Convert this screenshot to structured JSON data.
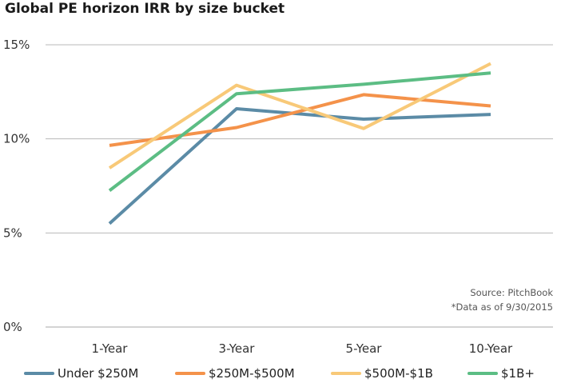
{
  "chart_data": {
    "type": "line",
    "title": "Global PE horizon IRR by size bucket",
    "xlabel": "",
    "ylabel": "",
    "categories": [
      "1-Year",
      "3-Year",
      "5-Year",
      "10-Year"
    ],
    "ylim": [
      0,
      15
    ],
    "yticks": [
      0,
      5,
      10,
      15
    ],
    "ytick_labels": [
      "0%",
      "5%",
      "10%",
      "15%"
    ],
    "grid": true,
    "legend_position": "bottom",
    "series": [
      {
        "name": "Under $250M",
        "color": "#5b8ba6",
        "values": [
          5.5,
          11.6,
          11.05,
          11.3
        ]
      },
      {
        "name": "$250M-$500M",
        "color": "#f4924a",
        "values": [
          9.65,
          10.6,
          12.35,
          11.75
        ]
      },
      {
        "name": "$500M-$1B",
        "color": "#f8c978",
        "values": [
          8.45,
          12.85,
          10.55,
          14.0
        ]
      },
      {
        "name": "$1B+",
        "color": "#5cbd84",
        "values": [
          7.25,
          12.4,
          12.9,
          13.5
        ]
      }
    ],
    "annotations": [
      "Source: PitchBook",
      "*Data as of 9/30/2015"
    ]
  }
}
